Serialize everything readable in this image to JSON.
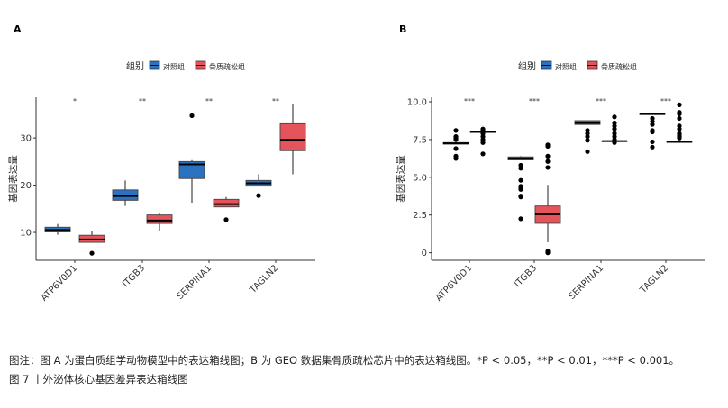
{
  "caption": {
    "note": "图注：图 A 为蛋白质组学动物模型中的表达箱线图；B 为 GEO 数据集骨质疏松芯片中的表达箱线图。*P < 0.05，**P < 0.01，***P < 0.001。",
    "figure_title": "图 7 丨外泌体核心基因差异表达箱线图"
  },
  "colors": {
    "control": "#2B72C0",
    "osteoporosis": "#E5545A"
  },
  "chart_data": [
    {
      "panel": "A",
      "type": "box",
      "legend_title": "组别",
      "legend_position": "top",
      "series_names": [
        "对照组",
        "骨质疏松组"
      ],
      "ylabel": "基因表达量",
      "ylim": [
        4.1,
        38.6
      ],
      "yticks": [
        "10",
        "20",
        "30"
      ],
      "ytick_values": [
        10,
        20,
        30
      ],
      "grid": false,
      "categories": [
        "ATP6V0D1",
        "ITGB3",
        "SERPINA1",
        "TAGLN2"
      ],
      "significance": [
        "*",
        "**",
        "**",
        "**"
      ],
      "groups": [
        [
          {
            "min": 9.5,
            "q1": 10.1,
            "median": 10.5,
            "q3": 11.1,
            "max": 11.8,
            "outliers": []
          },
          {
            "min": 7.9,
            "q1": 7.9,
            "median": 8.5,
            "q3": 9.4,
            "max": 10.2,
            "outliers": [
              5.6
            ]
          }
        ],
        [
          {
            "min": 15.6,
            "q1": 16.8,
            "median": 17.7,
            "q3": 19.0,
            "max": 21.0,
            "outliers": []
          },
          {
            "min": 10.2,
            "q1": 11.9,
            "median": 12.5,
            "q3": 13.7,
            "max": 14.0,
            "outliers": []
          }
        ],
        [
          {
            "min": 16.3,
            "q1": 21.4,
            "median": 24.4,
            "q3": 25.0,
            "max": 25.3,
            "outliers": [
              34.7
            ]
          },
          {
            "min": 15.4,
            "q1": 15.4,
            "median": 16.0,
            "q3": 17.0,
            "max": 17.5,
            "outliers": [
              12.7
            ]
          }
        ],
        [
          {
            "min": 19.8,
            "q1": 19.8,
            "median": 20.4,
            "q3": 21.0,
            "max": 22.3,
            "outliers": [
              17.8
            ]
          },
          {
            "min": 22.3,
            "q1": 27.3,
            "median": 29.6,
            "q3": 33.0,
            "max": 37.2,
            "outliers": []
          }
        ]
      ]
    },
    {
      "panel": "B",
      "type": "box",
      "legend_title": "组别",
      "legend_position": "top",
      "series_names": [
        "对照组",
        "骨质疏松组"
      ],
      "ylabel": "基因表达量",
      "ylim": [
        -0.5,
        10.3
      ],
      "yticks": [
        "0",
        "2.5",
        "5.0",
        "7.5",
        "10.0"
      ],
      "ytick_values": [
        0,
        2.5,
        5,
        7.5,
        10
      ],
      "grid": false,
      "categories": [
        "ATP6V0D1",
        "ITGB3",
        "SERPINA1",
        "TAGLN2"
      ],
      "significance": [
        "***",
        "***",
        "***",
        "***"
      ],
      "groups": [
        [
          {
            "min": 7.2,
            "q1": 7.2,
            "median": 7.25,
            "q3": 7.3,
            "max": 7.35,
            "outliers": [
              8.1,
              7.7,
              7.6,
              7.5,
              6.9,
              6.4,
              6.25
            ]
          },
          {
            "min": 8.0,
            "q1": 8.0,
            "median": 8.0,
            "q3": 8.0,
            "max": 8.0,
            "outliers": [
              8.2,
              8.1,
              7.9,
              7.7,
              7.5,
              7.3,
              6.55
            ]
          }
        ],
        [
          {
            "min": 6.15,
            "q1": 6.15,
            "median": 6.25,
            "q3": 6.35,
            "max": 6.4,
            "outliers": [
              5.8,
              5.6,
              4.8,
              4.4,
              4.3,
              4.2,
              3.75,
              3.7,
              2.25
            ]
          },
          {
            "min": 0.7,
            "q1": 1.95,
            "median": 2.55,
            "q3": 3.1,
            "max": 4.5,
            "outliers": [
              7.15,
              7.05,
              6.4,
              6.05,
              5.65,
              0.1,
              0.0
            ]
          }
        ],
        [
          {
            "min": 8.5,
            "q1": 8.5,
            "median": 8.6,
            "q3": 8.75,
            "max": 8.75,
            "outliers": [
              8.1,
              7.9,
              7.7,
              7.45,
              6.7
            ]
          },
          {
            "min": 7.4,
            "q1": 7.4,
            "median": 7.4,
            "q3": 7.4,
            "max": 7.4,
            "outliers": [
              9.0,
              8.6,
              8.4,
              8.2,
              7.9,
              7.7,
              7.5,
              7.3
            ]
          }
        ],
        [
          {
            "min": 9.15,
            "q1": 9.15,
            "median": 9.2,
            "q3": 9.25,
            "max": 9.25,
            "outliers": [
              8.9,
              8.7,
              8.5,
              8.1,
              8.0,
              7.35,
              7.0
            ]
          },
          {
            "min": 7.35,
            "q1": 7.35,
            "median": 7.35,
            "q3": 7.35,
            "max": 7.35,
            "outliers": [
              9.8,
              9.3,
              9.2,
              8.9,
              8.4,
              8.2,
              7.9,
              7.8,
              7.7,
              7.6
            ]
          }
        ]
      ]
    }
  ]
}
